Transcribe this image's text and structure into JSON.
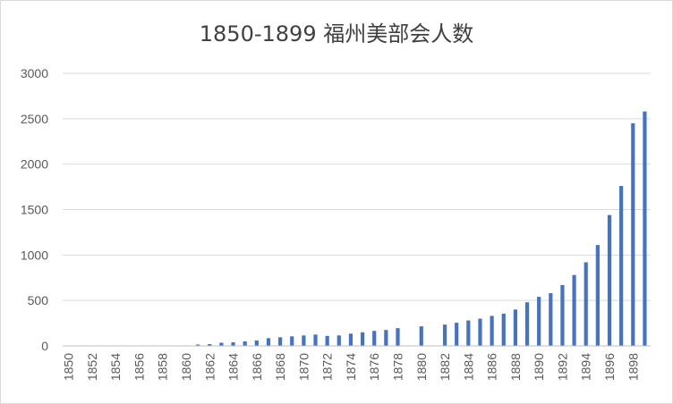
{
  "chart_data": {
    "type": "bar",
    "title": "1850-1899 福州美部会人数",
    "xlabel": "",
    "ylabel": "",
    "ylim": [
      0,
      3000
    ],
    "yticks": [
      0,
      500,
      1000,
      1500,
      2000,
      2500,
      3000
    ],
    "categories": [
      "1850",
      "1851",
      "1852",
      "1853",
      "1854",
      "1855",
      "1856",
      "1857",
      "1858",
      "1859",
      "1860",
      "1861",
      "1862",
      "1863",
      "1864",
      "1865",
      "1866",
      "1867",
      "1868",
      "1869",
      "1870",
      "1871",
      "1872",
      "1873",
      "1874",
      "1875",
      "1876",
      "1877",
      "1878",
      "1879",
      "1880",
      "1881",
      "1882",
      "1883",
      "1884",
      "1885",
      "1886",
      "1887",
      "1888",
      "1889",
      "1890",
      "1891",
      "1892",
      "1893",
      "1894",
      "1895",
      "1896",
      "1897",
      "1898",
      "1899"
    ],
    "xtick_labels": [
      "1850",
      "1852",
      "1854",
      "1856",
      "1858",
      "1860",
      "1862",
      "1864",
      "1866",
      "1868",
      "1870",
      "1872",
      "1874",
      "1876",
      "1878",
      "1880",
      "1882",
      "1884",
      "1886",
      "1888",
      "1890",
      "1892",
      "1894",
      "1896",
      "1898"
    ],
    "values": [
      0,
      0,
      0,
      0,
      0,
      0,
      0,
      0,
      0,
      0,
      0,
      15,
      20,
      35,
      40,
      50,
      60,
      85,
      95,
      105,
      115,
      125,
      110,
      115,
      135,
      150,
      165,
      175,
      195,
      null,
      215,
      null,
      235,
      255,
      280,
      300,
      330,
      355,
      400,
      480,
      540,
      580,
      670,
      780,
      920,
      1110,
      1440,
      1760,
      2450,
      2580
    ],
    "series": [
      {
        "values_ref": "values"
      }
    ],
    "grid": true,
    "legend": "none",
    "bar_color": "#4472c4",
    "grid_color": "#d9d9d9",
    "axis_color": "#bfbfbf",
    "text_color": "#595959"
  }
}
